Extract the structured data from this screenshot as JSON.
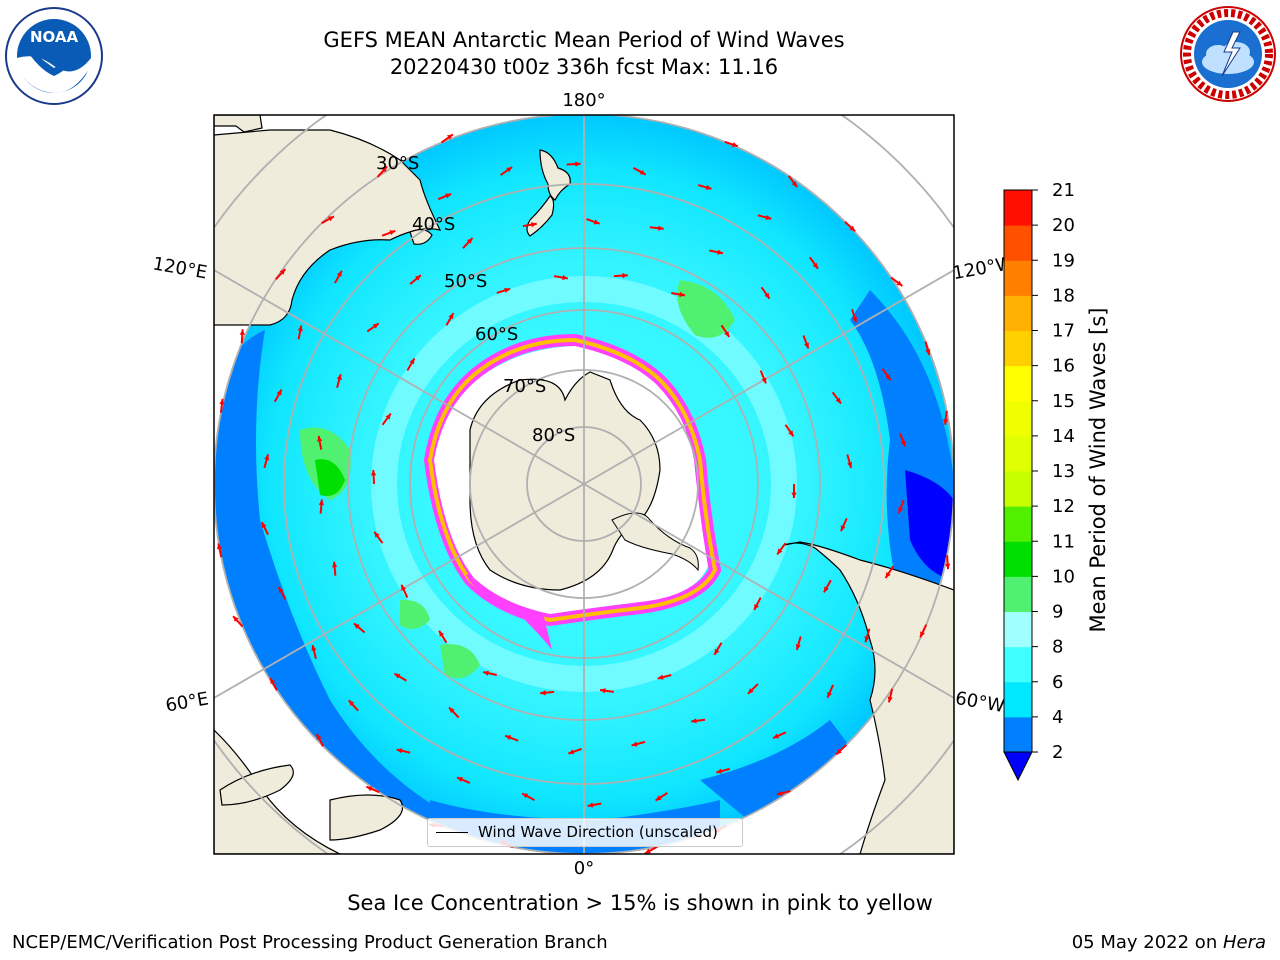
{
  "title": {
    "line1": "GEFS MEAN Antarctic Mean Period of Wind Waves",
    "line2": "20220430 t00z 336h fcst   Max: 11.16"
  },
  "map": {
    "projection": "south-polar-stereographic",
    "longitude_labels": {
      "top": "180°",
      "bottom": "0°",
      "upper_left": "120°E",
      "upper_right": "120°W",
      "lower_left": "60°E",
      "lower_right": "60°W"
    },
    "latitude_labels": [
      "30°S",
      "40°S",
      "50°S",
      "60°S",
      "70°S",
      "80°S"
    ],
    "legend": "Wind Wave Direction (unscaled)",
    "colors": {
      "land": "#efecdc",
      "ice_shelf": "#ffffff",
      "sea_ice_pink": "#ff40ff",
      "sea_ice_yellow": "#ffc000",
      "gridline": "#b0b0b0",
      "arrow": "#ff0000"
    }
  },
  "colorbar": {
    "label": "Mean Period of Wind Waves [s]",
    "ticks": [
      "2",
      "4",
      "6",
      "8",
      "9",
      "10",
      "11",
      "12",
      "13",
      "14",
      "15",
      "16",
      "17",
      "18",
      "19",
      "20",
      "21"
    ],
    "colors": [
      "#0080ff",
      "#00e8ff",
      "#40ffff",
      "#a0ffff",
      "#50f070",
      "#00e000",
      "#50f000",
      "#c8ff00",
      "#e0ff00",
      "#f0ff00",
      "#ffff00",
      "#ffd000",
      "#ffb000",
      "#ff8000",
      "#ff5000",
      "#ff1000",
      "#ff0000"
    ],
    "extend_color": "#0000ff"
  },
  "logos": {
    "noaa": "NOAA",
    "nws": "NATIONAL WEATHER SERVICE"
  },
  "footer": {
    "subtitle": "Sea Ice Concentration > 15% is shown in pink to yellow",
    "credit_left": "NCEP/EMC/Verification Post Processing Product Generation Branch",
    "credit_right_date": "05 May 2022 on ",
    "credit_right_host": "Hera"
  }
}
